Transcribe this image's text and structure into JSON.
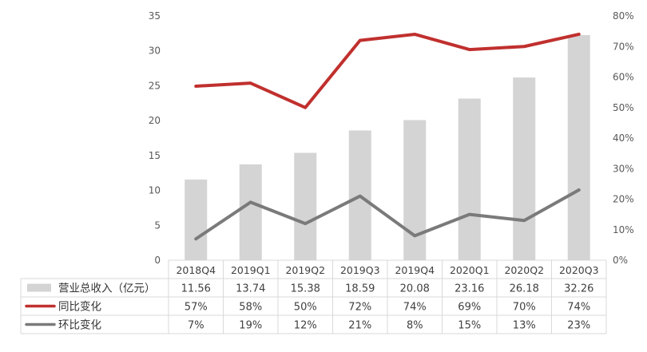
{
  "chart_data": {
    "type": "bar",
    "categories": [
      "2018Q4",
      "2019Q1",
      "2019Q2",
      "2019Q3",
      "2019Q4",
      "2020Q1",
      "2020Q2",
      "2020Q3"
    ],
    "series": [
      {
        "name": "营业总收入（亿元）",
        "type": "bar",
        "axis": "left",
        "color": "#d4d4d4",
        "values": [
          11.56,
          13.74,
          15.38,
          18.59,
          20.08,
          23.16,
          26.18,
          32.26
        ],
        "labels": [
          "11.56",
          "13.74",
          "15.38",
          "18.59",
          "20.08",
          "23.16",
          "26.18",
          "32.26"
        ]
      },
      {
        "name": "同比变化",
        "type": "line",
        "axis": "right",
        "color": "#c0302e",
        "values": [
          57,
          58,
          50,
          72,
          74,
          69,
          70,
          74
        ],
        "labels": [
          "57%",
          "58%",
          "50%",
          "72%",
          "74%",
          "69%",
          "70%",
          "74%"
        ]
      },
      {
        "name": "环比变化",
        "type": "line",
        "axis": "right",
        "color": "#7a7a7a",
        "values": [
          7,
          19,
          12,
          21,
          8,
          15,
          13,
          23
        ],
        "labels": [
          "7%",
          "19%",
          "12%",
          "21%",
          "8%",
          "15%",
          "13%",
          "23%"
        ]
      }
    ],
    "y_left": {
      "ylim": [
        0,
        35
      ],
      "ticks": [
        "0",
        "5",
        "10",
        "15",
        "20",
        "25",
        "30",
        "35"
      ]
    },
    "y_right": {
      "ylim": [
        0,
        80
      ],
      "ticks": [
        "0%",
        "10%",
        "20%",
        "30%",
        "40%",
        "50%",
        "60%",
        "70%",
        "80%"
      ]
    },
    "grid": false,
    "legend": "data-table-below"
  }
}
